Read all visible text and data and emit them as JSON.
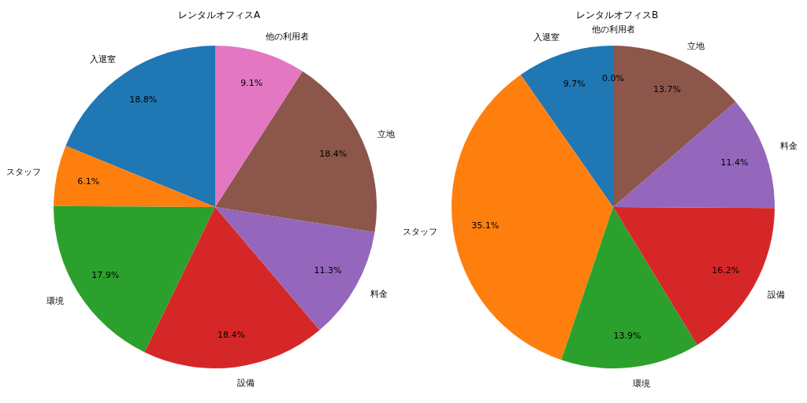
{
  "chart_data": [
    {
      "type": "pie",
      "title": "レンタルオフィスA",
      "categories": [
        "入退室",
        "スタッフ",
        "環境",
        "設備",
        "料金",
        "立地",
        "他の利用者"
      ],
      "values": [
        18.8,
        6.1,
        17.9,
        18.4,
        11.3,
        18.4,
        9.1
      ],
      "colors": [
        "#1f77b4",
        "#ff7f0e",
        "#2ca02c",
        "#d62728",
        "#9467bd",
        "#8c564b",
        "#e377c2"
      ],
      "value_labels": [
        "18.8%",
        "6.1%",
        "17.9%",
        "18.4%",
        "11.3%",
        "18.4%",
        "9.1%"
      ]
    },
    {
      "type": "pie",
      "title": "レンタルオフィスB",
      "categories": [
        "入退室",
        "スタッフ",
        "環境",
        "設備",
        "料金",
        "立地",
        "他の利用者"
      ],
      "values": [
        9.7,
        35.1,
        13.9,
        16.2,
        11.4,
        13.7,
        0.0
      ],
      "colors": [
        "#1f77b4",
        "#ff7f0e",
        "#2ca02c",
        "#d62728",
        "#9467bd",
        "#8c564b",
        "#e377c2"
      ],
      "value_labels": [
        "9.7%",
        "35.1%",
        "13.9%",
        "16.2%",
        "11.4%",
        "13.7%",
        "0.0%"
      ]
    }
  ]
}
